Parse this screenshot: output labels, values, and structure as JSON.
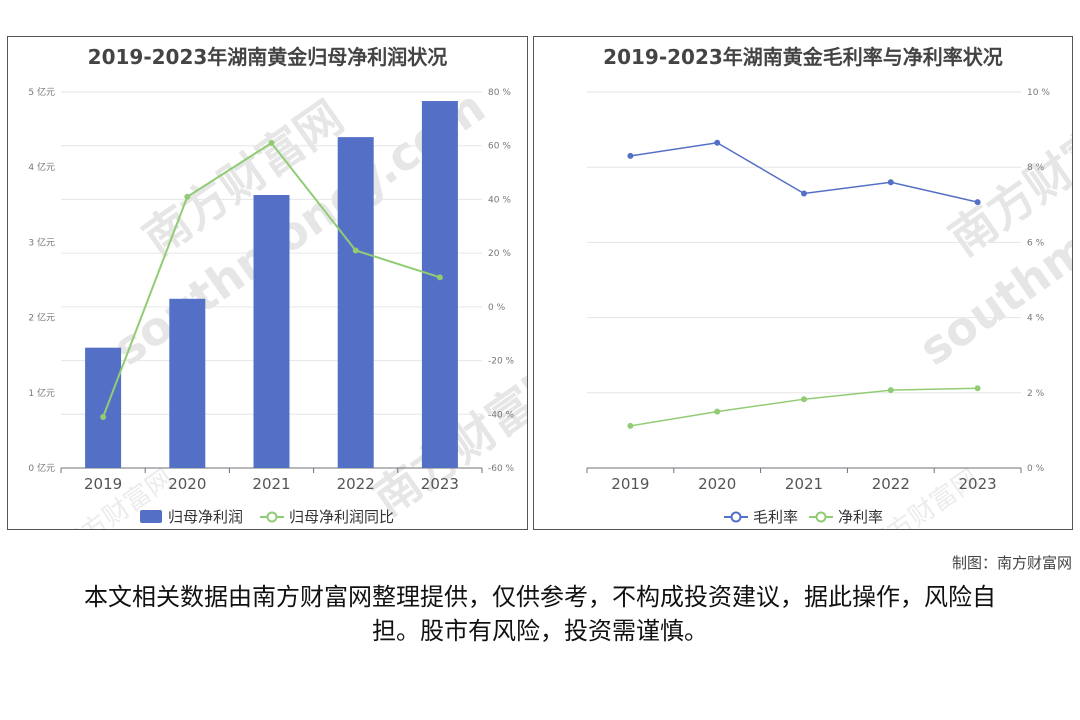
{
  "colors": {
    "bar": "#5470c6",
    "green": "#91cc75",
    "blue_line": "#5470c6"
  },
  "chart_data": [
    {
      "type": "bar",
      "title": "2019-2023年湖南黄金归母净利润状况",
      "categories": [
        "2019",
        "2020",
        "2021",
        "2022",
        "2023"
      ],
      "series": [
        {
          "name": "归母净利润",
          "type": "bar",
          "axis": "left",
          "values": [
            1.6,
            2.25,
            3.63,
            4.4,
            4.88
          ]
        },
        {
          "name": "归母净利润同比",
          "type": "line",
          "axis": "right",
          "values": [
            -41,
            41,
            61,
            21,
            11
          ]
        }
      ],
      "y_left": {
        "min": 0,
        "max": 5,
        "ticks": [
          "0 亿元",
          "1 亿元",
          "2 亿元",
          "3 亿元",
          "4 亿元",
          "5 亿元"
        ]
      },
      "y_right": {
        "min": -60,
        "max": 80,
        "ticks": [
          "-60 %",
          "-40 %",
          "-20 %",
          "0 %",
          "20 %",
          "40 %",
          "60 %",
          "80 %"
        ]
      },
      "grid": true,
      "legend": "bottom"
    },
    {
      "type": "line",
      "title": "2019-2023年湖南黄金毛利率与净利率状况",
      "categories": [
        "2019",
        "2020",
        "2021",
        "2022",
        "2023"
      ],
      "series": [
        {
          "name": "毛利率",
          "values": [
            8.3,
            8.65,
            7.3,
            7.6,
            7.07
          ]
        },
        {
          "name": "净利率",
          "values": [
            1.12,
            1.5,
            1.83,
            2.07,
            2.12
          ]
        }
      ],
      "y_right": {
        "min": 0,
        "max": 10,
        "ticks": [
          "0 %",
          "2 %",
          "4 %",
          "6 %",
          "8 %",
          "10 %"
        ]
      },
      "grid": true,
      "legend": "bottom"
    }
  ],
  "watermark": {
    "cn": "南方财富网",
    "en": "southmoney.com"
  },
  "credit": "制图：南方财富网",
  "disclaimer": "本文相关数据由南方财富网整理提供，仅供参考，不构成投资建议，据此操作，风险自担。股市有风险，投资需谨慎。"
}
